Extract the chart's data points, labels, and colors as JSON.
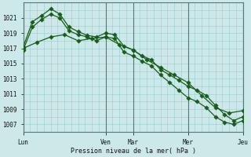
{
  "background_color": "#cce8e8",
  "plot_bg_color": "#cce8e8",
  "grid_color": "#99cccc",
  "line_color": "#1a5c1a",
  "title": "Pression niveau de la mer( hPa )",
  "ylim": [
    1006.0,
    1023.0
  ],
  "yticks": [
    1007,
    1009,
    1011,
    1013,
    1015,
    1017,
    1019,
    1021
  ],
  "xtick_labels": [
    "Lun",
    "Ven",
    "Mar",
    "Mer",
    "Jeu"
  ],
  "xtick_positions": [
    0,
    36,
    48,
    72,
    96
  ],
  "series1_x": [
    0,
    4,
    8,
    12,
    16,
    20,
    24,
    28,
    32,
    36,
    40,
    44,
    48,
    52,
    56,
    60,
    64,
    68,
    72,
    76,
    80,
    84,
    88,
    92,
    96
  ],
  "series1": [
    1016.8,
    1019.8,
    1020.8,
    1021.5,
    1021.0,
    1019.3,
    1018.8,
    1018.5,
    1018.0,
    1018.5,
    1018.3,
    1016.5,
    1016.0,
    1015.3,
    1014.7,
    1013.5,
    1012.5,
    1011.5,
    1010.5,
    1010.0,
    1009.2,
    1008.0,
    1007.3,
    1007.0,
    1007.5
  ],
  "series2_x": [
    0,
    4,
    8,
    12,
    16,
    20,
    24,
    28,
    32,
    36,
    40,
    44,
    48,
    52,
    56,
    60,
    64,
    68,
    72,
    76,
    80,
    84,
    88,
    92,
    96
  ],
  "series2": [
    1017.2,
    1020.5,
    1021.3,
    1022.2,
    1021.5,
    1019.8,
    1019.2,
    1018.7,
    1018.5,
    1019.0,
    1018.8,
    1017.3,
    1016.8,
    1016.0,
    1015.5,
    1014.2,
    1013.5,
    1012.8,
    1012.0,
    1011.5,
    1010.8,
    1009.5,
    1008.3,
    1007.5,
    1008.0
  ],
  "series3_x": [
    0,
    6,
    12,
    18,
    24,
    30,
    36,
    42,
    48,
    54,
    60,
    66,
    72,
    78,
    84,
    90,
    96
  ],
  "series3": [
    1017.0,
    1017.8,
    1018.5,
    1018.8,
    1018.0,
    1018.3,
    1018.5,
    1017.5,
    1016.8,
    1015.5,
    1014.5,
    1013.5,
    1012.5,
    1010.8,
    1009.2,
    1008.5,
    1008.8
  ],
  "vline_positions": [
    0,
    36,
    48,
    72,
    96
  ],
  "total_x": 96
}
